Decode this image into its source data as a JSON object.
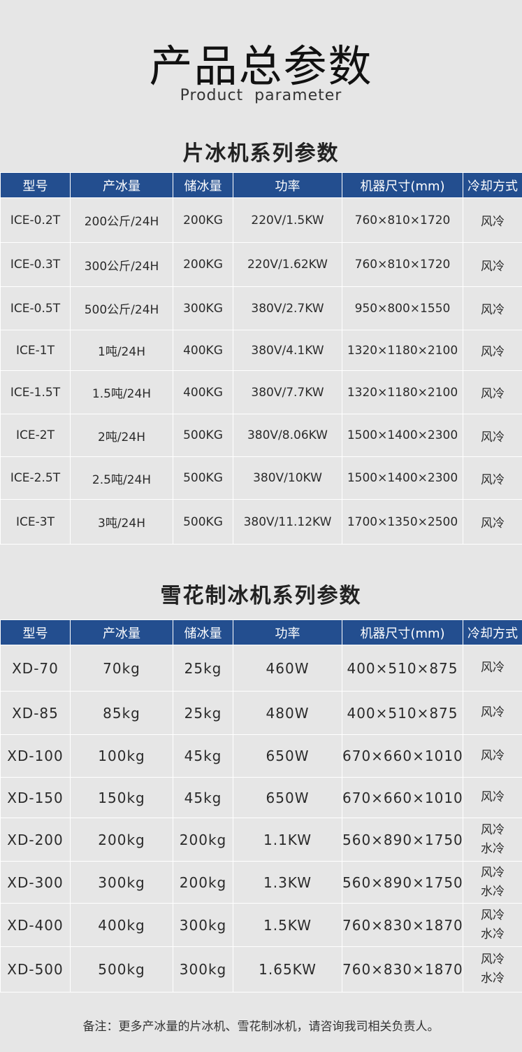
{
  "title": "产品总参数",
  "subtitle": "Product parameter",
  "flake": {
    "heading": "片冰机系列参数",
    "columns": [
      "型号",
      "产冰量",
      "储冰量",
      "功率",
      "机器尺寸(mm)",
      "冷却方式"
    ],
    "rows": [
      [
        "ICE-0.2T",
        "200公斤/24H",
        "200KG",
        "220V/1.5KW",
        "760×810×1720",
        "风冷"
      ],
      [
        "ICE-0.3T",
        "300公斤/24H",
        "200KG",
        "220V/1.62KW",
        "760×810×1720",
        "风冷"
      ],
      [
        "ICE-0.5T",
        "500公斤/24H",
        "300KG",
        "380V/2.7KW",
        "950×800×1550",
        "风冷"
      ],
      [
        "ICE-1T",
        "1吨/24H",
        "400KG",
        "380V/4.1KW",
        "1320×1180×2100",
        "风冷"
      ],
      [
        "ICE-1.5T",
        "1.5吨/24H",
        "400KG",
        "380V/7.7KW",
        "1320×1180×2100",
        "风冷"
      ],
      [
        "ICE-2T",
        "2吨/24H",
        "500KG",
        "380V/8.06KW",
        "1500×1400×2300",
        "风冷"
      ],
      [
        "ICE-2.5T",
        "2.5吨/24H",
        "500KG",
        "380V/10KW",
        "1500×1400×2300",
        "风冷"
      ],
      [
        "ICE-3T",
        "3吨/24H",
        "500KG",
        "380V/11.12KW",
        "1700×1350×2500",
        "风冷"
      ]
    ]
  },
  "snow": {
    "heading": "雪花制冰机系列参数",
    "columns": [
      "型号",
      "产冰量",
      "储冰量",
      "功率",
      "机器尺寸(mm)",
      "冷却方式"
    ],
    "rows": [
      [
        "XD-70",
        "70kg",
        "25kg",
        "460W",
        "400×510×875",
        "风冷"
      ],
      [
        "XD-85",
        "85kg",
        "25kg",
        "480W",
        "400×510×875",
        "风冷"
      ],
      [
        "XD-100",
        "100kg",
        "45kg",
        "650W",
        "670×660×1010",
        "风冷"
      ],
      [
        "XD-150",
        "150kg",
        "45kg",
        "650W",
        "670×660×1010",
        "风冷"
      ],
      [
        "XD-200",
        "200kg",
        "200kg",
        "1.1KW",
        "560×890×1750",
        "风冷\n水冷"
      ],
      [
        "XD-300",
        "300kg",
        "200kg",
        "1.3KW",
        "560×890×1750",
        "风冷\n水冷"
      ],
      [
        "XD-400",
        "400kg",
        "300kg",
        "1.5KW",
        "760×830×1870",
        "风冷\n水冷"
      ],
      [
        "XD-500",
        "500kg",
        "300kg",
        "1.65KW",
        "760×830×1870",
        "风冷\n水冷"
      ]
    ]
  },
  "note": "备注：更多产冰量的片冰机、雪花制冰机，请咨询我司相关负责人。",
  "colors": {
    "header": "#234e8f",
    "background": "#e6e6e6"
  }
}
